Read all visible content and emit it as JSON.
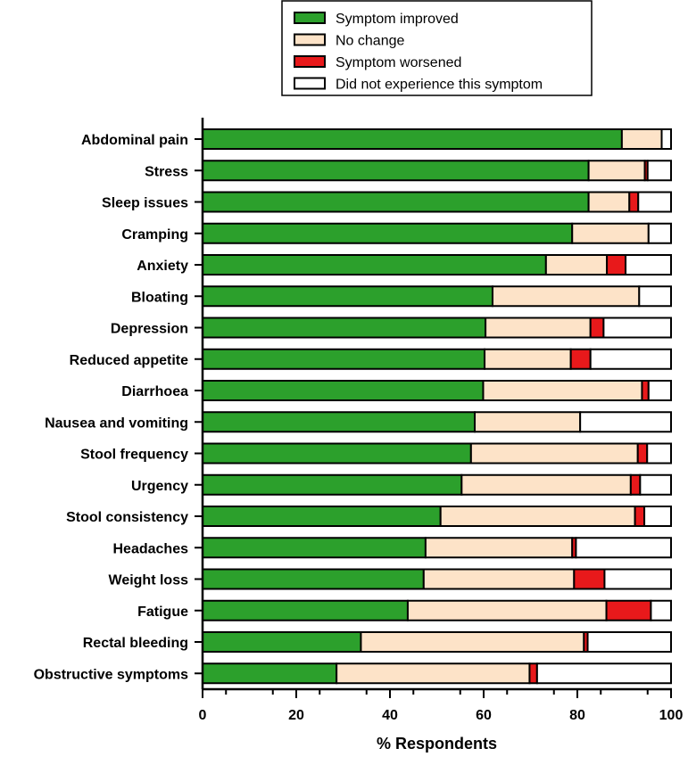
{
  "chart_data": {
    "type": "bar",
    "orientation": "horizontal",
    "stacked": true,
    "title": "",
    "xlabel": "% Respondents",
    "ylabel": "",
    "xlim": [
      0,
      100
    ],
    "xticks": [
      0,
      20,
      40,
      60,
      80,
      100
    ],
    "grid": false,
    "legend_position": "top",
    "categories": [
      "Abdominal pain",
      "Stress",
      "Sleep issues",
      "Cramping",
      "Anxiety",
      "Bloating",
      "Depression",
      "Reduced appetite",
      "Diarrhoea",
      "Nausea and vomiting",
      "Stool frequency",
      "Urgency",
      "Stool consistency",
      "Headaches",
      "Weight loss",
      "Fatigue",
      "Rectal bleeding",
      "Obstructive symptoms"
    ],
    "series": [
      {
        "name": "Symptom improved",
        "color": "#2ca02c",
        "values": [
          89.5,
          82.4,
          82.4,
          78.9,
          73.3,
          61.9,
          60.4,
          60.2,
          59.9,
          58.1,
          57.3,
          55.3,
          50.8,
          47.6,
          47.2,
          43.8,
          33.8,
          28.6
        ]
      },
      {
        "name": "No change",
        "color": "#fde3c8",
        "values": [
          8.5,
          12.0,
          8.7,
          16.3,
          13.0,
          31.3,
          22.4,
          18.4,
          33.9,
          22.5,
          35.6,
          36.1,
          41.5,
          31.3,
          32.1,
          42.4,
          47.6,
          41.2
        ]
      },
      {
        "name": "Symptom worsened",
        "color": "#e8191b",
        "values": [
          0,
          0.6,
          1.9,
          0,
          4.0,
          0,
          2.8,
          4.2,
          1.4,
          0,
          2.0,
          2.0,
          2.0,
          0.8,
          6.5,
          9.5,
          0.8,
          1.6
        ]
      },
      {
        "name": "Did not experience this symptom",
        "color": "#ffffff",
        "values": [
          2.0,
          5.0,
          7.0,
          4.8,
          9.7,
          6.8,
          14.4,
          17.2,
          4.8,
          19.4,
          5.1,
          6.6,
          5.7,
          20.3,
          14.2,
          4.3,
          17.8,
          28.6
        ]
      }
    ]
  }
}
